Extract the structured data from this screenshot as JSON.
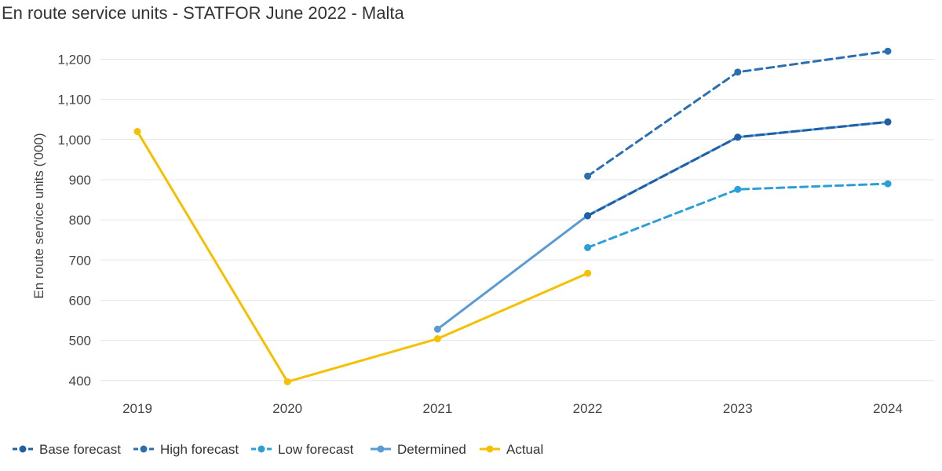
{
  "chart_data": {
    "type": "line",
    "title": "En route service units - STATFOR June 2022 - Malta",
    "xlabel": "",
    "ylabel": "En route service units ('000)",
    "categories": [
      "2019",
      "2020",
      "2021",
      "2022",
      "2023",
      "2024"
    ],
    "yticks": [
      "400",
      "500",
      "600",
      "700",
      "800",
      "900",
      "1,000",
      "1,100",
      "1,200"
    ],
    "ylim": [
      380,
      1240
    ],
    "grid": true,
    "legend_position": "bottom-left",
    "series": [
      {
        "name": "Base forecast",
        "color": "#1f5fa6",
        "dashed": true,
        "values": [
          null,
          null,
          null,
          810,
          1006,
          1044
        ]
      },
      {
        "name": "High forecast",
        "color": "#2a6fb0",
        "dashed": true,
        "values": [
          null,
          null,
          null,
          909,
          1168,
          1220
        ]
      },
      {
        "name": "Low forecast",
        "color": "#2b9fd8",
        "dashed": true,
        "values": [
          null,
          null,
          null,
          731,
          876,
          890
        ]
      },
      {
        "name": "Determined",
        "color": "#5b9bd5",
        "dashed": false,
        "values": [
          null,
          null,
          528,
          811,
          1006,
          1044
        ]
      },
      {
        "name": "Actual",
        "color": "#f5c000",
        "dashed": false,
        "values": [
          1020,
          397,
          504,
          667,
          null,
          null
        ]
      }
    ]
  }
}
